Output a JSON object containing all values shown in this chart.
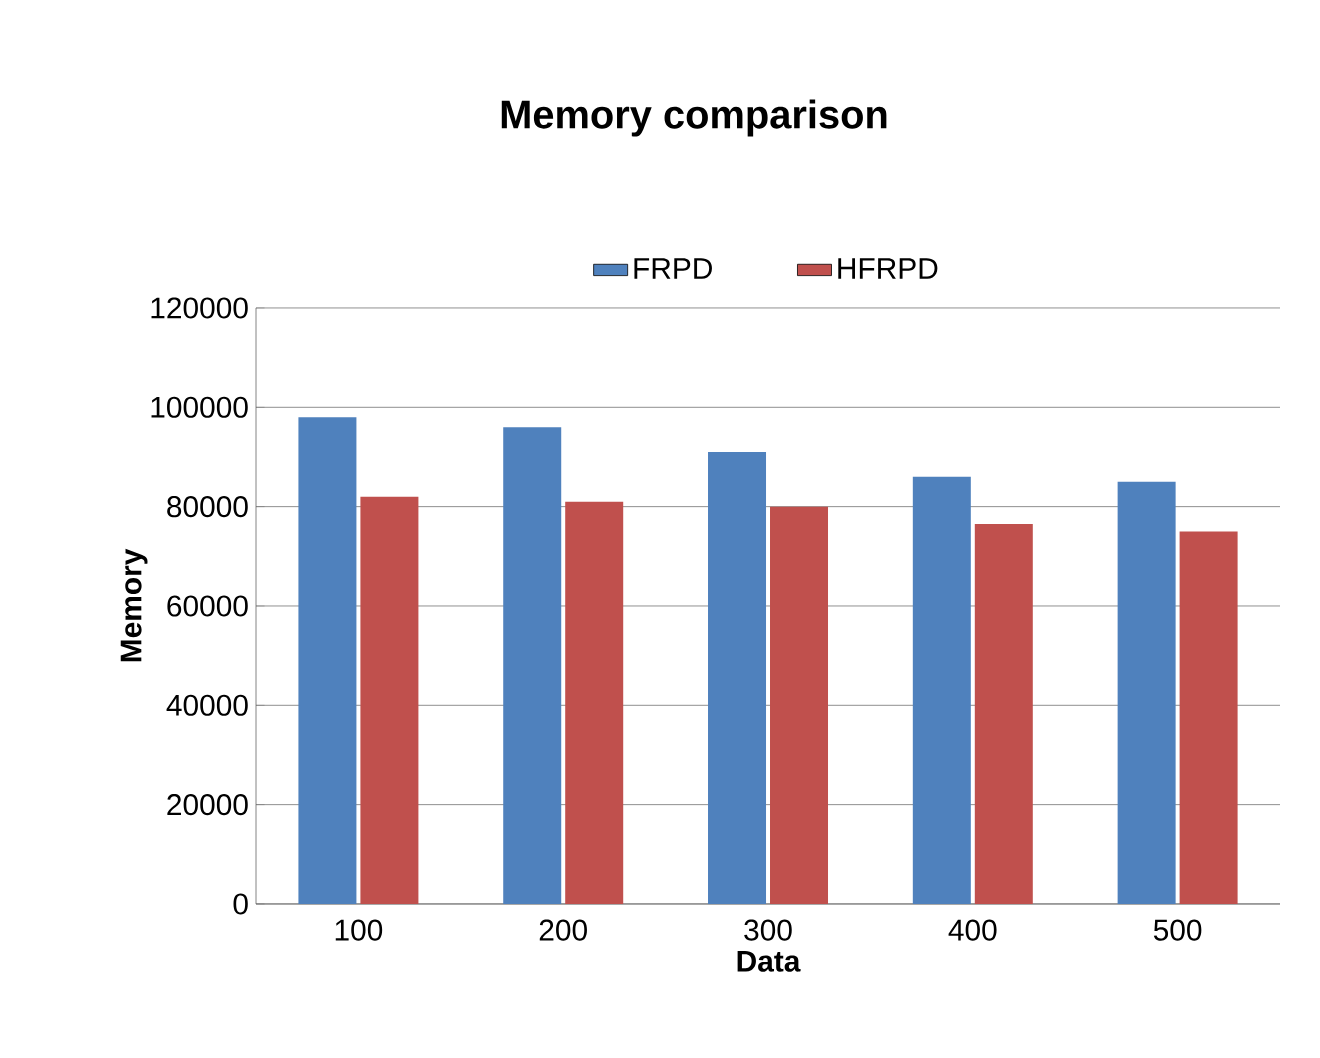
{
  "chart_data": {
    "type": "bar",
    "title": "Memory comparison",
    "xlabel": "Data",
    "ylabel": "Memory",
    "categories": [
      "100",
      "200",
      "300",
      "400",
      "500"
    ],
    "series": [
      {
        "name": "FRPD",
        "color": "#4f81bd",
        "values": [
          98000,
          96000,
          91000,
          86000,
          85000
        ]
      },
      {
        "name": "HFRPD",
        "color": "#c0504d",
        "values": [
          82000,
          81000,
          80000,
          76500,
          75000
        ]
      }
    ],
    "ylim": [
      0,
      120000
    ],
    "yticks": [
      0,
      20000,
      40000,
      60000,
      80000,
      100000,
      120000
    ],
    "grid": "y",
    "legend": "top"
  }
}
